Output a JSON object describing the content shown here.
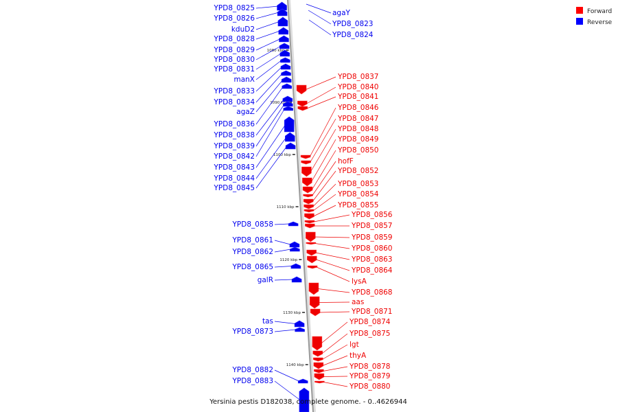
{
  "caption": "Yersinia pestis D182038, complete genome. - 0..4626944",
  "legend": [
    {
      "label": "Forward",
      "color": "#ff0000"
    },
    {
      "label": "Reverse",
      "color": "#0000ff"
    }
  ],
  "colors": {
    "forward": "#ee0000",
    "reverse": "#0000ee",
    "axis": "#999999"
  },
  "ticks": [
    "1080 kbp",
    "1090 kbp",
    "1100 kbp",
    "1110 kbp",
    "1120 kbp",
    "1130 kbp",
    "1140 kbp"
  ],
  "genes": {
    "reverse_top": [
      {
        "label": "YPD8_0825"
      },
      {
        "label": "YPD8_0826"
      },
      {
        "label": "kduD2"
      },
      {
        "label": "YPD8_0828"
      },
      {
        "label": "YPD8_0829"
      },
      {
        "label": "YPD8_0830"
      },
      {
        "label": "YPD8_0831"
      },
      {
        "label": "manX"
      },
      {
        "label": "YPD8_0833"
      },
      {
        "label": "YPD8_0834"
      },
      {
        "label": "agaZ"
      },
      {
        "label": "YPD8_0836"
      },
      {
        "label": "YPD8_0838"
      },
      {
        "label": "YPD8_0839"
      },
      {
        "label": "YPD8_0842"
      },
      {
        "label": "YPD8_0843"
      },
      {
        "label": "YPD8_0844"
      },
      {
        "label": "YPD8_0845"
      }
    ],
    "reverse_bottom": [
      {
        "label": "YPD8_0858"
      },
      {
        "label": "YPD8_0861"
      },
      {
        "label": "YPD8_0862"
      },
      {
        "label": "YPD8_0865"
      },
      {
        "label": "galR"
      },
      {
        "label": "tas"
      },
      {
        "label": "YPD8_0873"
      },
      {
        "label": "YPD8_0882"
      },
      {
        "label": "YPD8_0883"
      }
    ],
    "forward_top": [
      {
        "label": "agaY"
      },
      {
        "label": "YPD8_0823"
      },
      {
        "label": "YPD8_0824"
      }
    ],
    "forward": [
      {
        "label": "YPD8_0837"
      },
      {
        "label": "YPD8_0840"
      },
      {
        "label": "YPD8_0841"
      },
      {
        "label": "YPD8_0846"
      },
      {
        "label": "YPD8_0847"
      },
      {
        "label": "YPD8_0848"
      },
      {
        "label": "YPD8_0849"
      },
      {
        "label": "YPD8_0850"
      },
      {
        "label": "hofF"
      },
      {
        "label": "YPD8_0852"
      },
      {
        "label": "YPD8_0853"
      },
      {
        "label": "YPD8_0854"
      },
      {
        "label": "YPD8_0855"
      },
      {
        "label": "YPD8_0856"
      },
      {
        "label": "YPD8_0857"
      },
      {
        "label": "YPD8_0859"
      },
      {
        "label": "YPD8_0860"
      },
      {
        "label": "YPD8_0863"
      },
      {
        "label": "YPD8_0864"
      },
      {
        "label": "lysA"
      },
      {
        "label": "YPD8_0868"
      },
      {
        "label": "aas"
      },
      {
        "label": "YPD8_0871"
      },
      {
        "label": "YPD8_0874"
      },
      {
        "label": "YPD8_0875"
      },
      {
        "label": "lgt"
      },
      {
        "label": "thyA"
      },
      {
        "label": "YPD8_0878"
      },
      {
        "label": "YPD8_0879"
      },
      {
        "label": "YPD8_0880"
      }
    ]
  }
}
